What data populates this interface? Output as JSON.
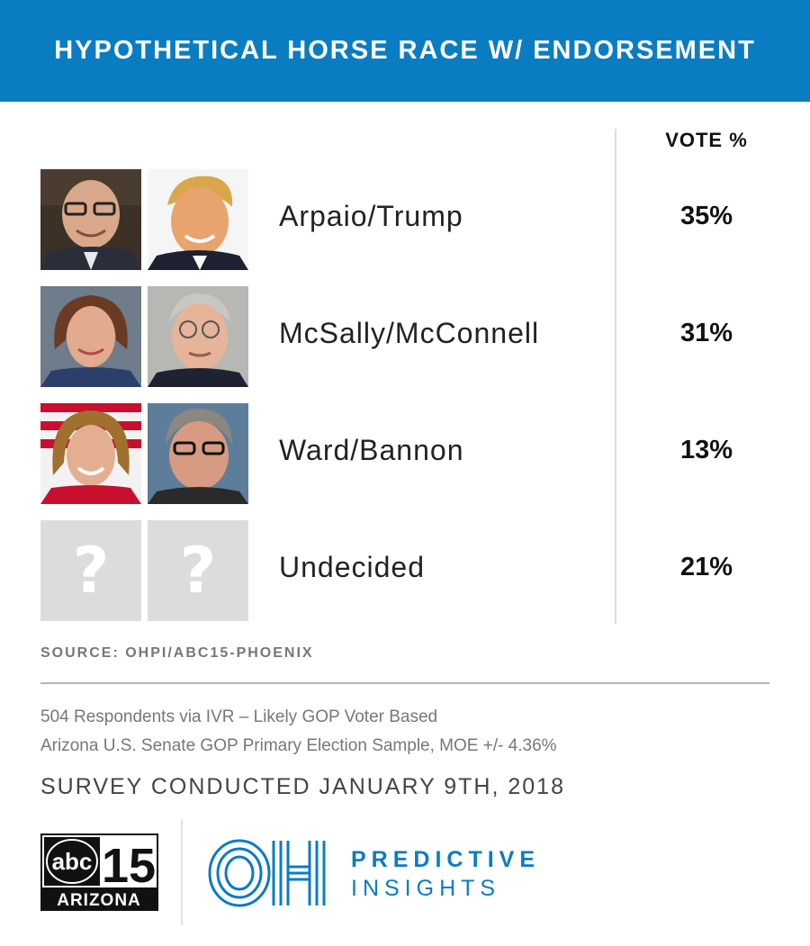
{
  "header": {
    "title": "HYPOTHETICAL HORSE RACE W/ ENDORSEMENT"
  },
  "colors": {
    "brand_blue": "#0a7cc2",
    "placeholder_gray": "#dcdcdc"
  },
  "chart_data": {
    "type": "table",
    "title": "HYPOTHETICAL HORSE RACE W/ ENDORSEMENT",
    "value_header": "VOTE %",
    "categories": [
      "Arpaio/Trump",
      "McSally/McConnell",
      "Ward/Bannon",
      "Undecided"
    ],
    "values": [
      35,
      31,
      13,
      21
    ],
    "value_labels": [
      "35%",
      "31%",
      "13%",
      "21%"
    ]
  },
  "rows": [
    {
      "candidate": "Arpaio/Trump",
      "pct": "35%",
      "photo_left": "arpaio-photo",
      "photo_right": "trump-photo"
    },
    {
      "candidate": "McSally/McConnell",
      "pct": "31%",
      "photo_left": "mcsally-photo",
      "photo_right": "mcconnell-photo"
    },
    {
      "candidate": "Ward/Bannon",
      "pct": "13%",
      "photo_left": "ward-photo",
      "photo_right": "bannon-photo"
    },
    {
      "candidate": "Undecided",
      "pct": "21%",
      "photo_left": "question-mark-icon",
      "photo_right": "question-mark-icon",
      "placeholder_glyph": "?"
    }
  ],
  "footer": {
    "source": "SOURCE: OHPI/ABC15-PHOENIX",
    "note1": "504 Respondents via IVR – Likely GOP Voter Based",
    "note2": "Arizona U.S. Senate GOP Primary Election Sample, MOE +/- 4.36%",
    "survey": "SURVEY CONDUCTED JANUARY 9TH, 2018"
  },
  "logos": {
    "abc15": {
      "top": "abc",
      "number": "15",
      "bottom": "ARIZONA"
    },
    "oh": {
      "mark": "OH",
      "line1": "PREDICTIVE",
      "line2": "INSIGHTS"
    }
  }
}
